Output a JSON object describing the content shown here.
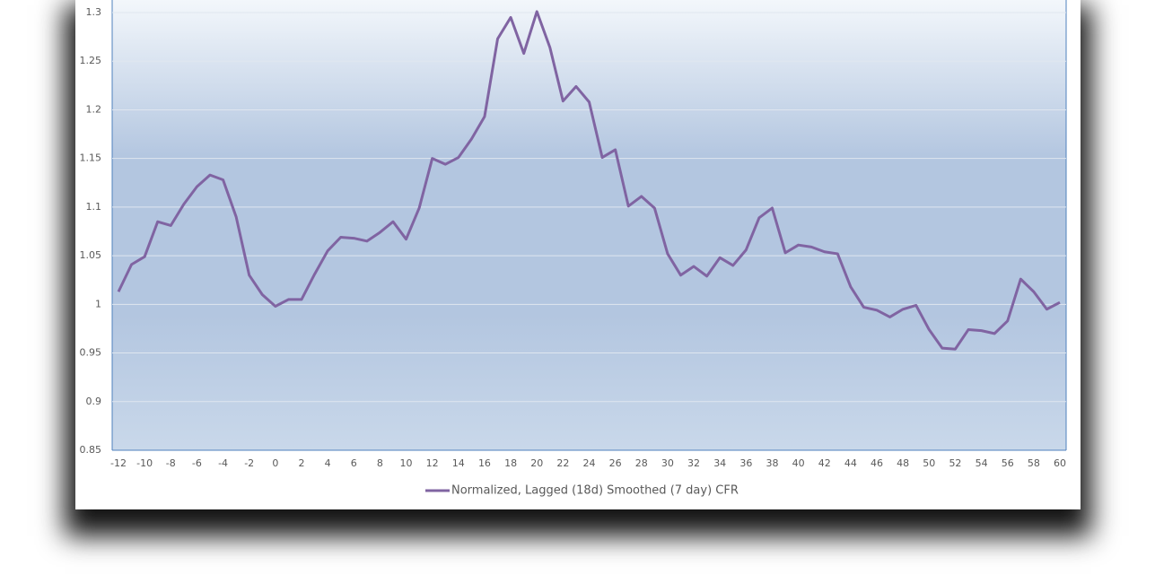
{
  "chart_data": {
    "type": "line",
    "x": [
      -12,
      -11,
      -10,
      -9,
      -8,
      -7,
      -6,
      -5,
      -4,
      -3,
      -2,
      -1,
      0,
      1,
      2,
      3,
      4,
      5,
      6,
      7,
      8,
      9,
      10,
      11,
      12,
      13,
      14,
      15,
      16,
      17,
      18,
      19,
      20,
      21,
      22,
      23,
      24,
      25,
      26,
      27,
      28,
      29,
      30,
      31,
      32,
      33,
      34,
      35,
      36,
      37,
      38,
      39,
      40,
      41,
      42,
      43,
      44,
      45,
      46,
      47,
      48,
      49,
      50,
      51,
      52,
      53,
      54,
      55,
      56,
      57,
      58,
      59,
      60
    ],
    "series": [
      {
        "name": "Normalized, Lagged (18d) Smoothed (7 day) CFR",
        "color": "#8064a2",
        "values": [
          1.013,
          1.041,
          1.049,
          1.085,
          1.081,
          1.103,
          1.121,
          1.133,
          1.128,
          1.09,
          1.03,
          1.01,
          0.998,
          1.005,
          1.005,
          1.031,
          1.055,
          1.069,
          1.068,
          1.065,
          1.074,
          1.085,
          1.067,
          1.099,
          1.15,
          1.144,
          1.151,
          1.17,
          1.193,
          1.273,
          1.295,
          1.258,
          1.301,
          1.264,
          1.209,
          1.224,
          1.208,
          1.151,
          1.159,
          1.101,
          1.111,
          1.099,
          1.052,
          1.03,
          1.039,
          1.029,
          1.048,
          1.04,
          1.056,
          1.089,
          1.099,
          1.053,
          1.061,
          1.059,
          1.054,
          1.052,
          1.018,
          0.997,
          0.994,
          0.987,
          0.995,
          0.999,
          0.974,
          0.955,
          0.954,
          0.974,
          0.973,
          0.97,
          0.983,
          1.026,
          1.013,
          0.995,
          1.002
        ]
      }
    ],
    "xlim": [
      -12,
      60
    ],
    "xticks": [
      -12,
      -10,
      -8,
      -6,
      -4,
      -2,
      0,
      2,
      4,
      6,
      8,
      10,
      12,
      14,
      16,
      18,
      20,
      22,
      24,
      26,
      28,
      30,
      32,
      34,
      36,
      38,
      40,
      42,
      44,
      46,
      48,
      50,
      52,
      54,
      56,
      58,
      60
    ],
    "ylim": [
      0.85,
      1.3
    ],
    "yticks": [
      0.85,
      0.9,
      0.95,
      1,
      1.05,
      1.1,
      1.15,
      1.2,
      1.25,
      1.3
    ],
    "grid": true,
    "legend": "bottom"
  }
}
